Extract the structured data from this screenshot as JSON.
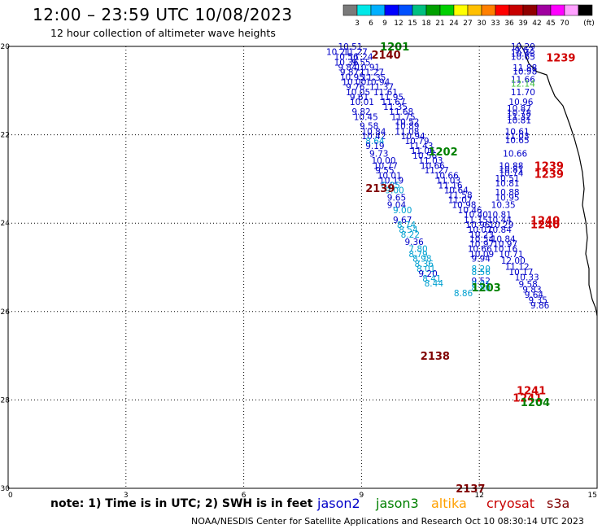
{
  "chart_data": {
    "type": "scatter",
    "title": "12:00 – 23:59 UTC 10/08/2023",
    "subtitle": "12 hour collection of altimeter wave heights",
    "x_ticks": [
      "0",
      "3",
      "6",
      "9",
      "12",
      "15"
    ],
    "y_ticks": [
      "-20",
      "-22",
      "-24",
      "-26",
      "-28",
      "-30"
    ],
    "xlim": [
      0,
      15
    ],
    "ylim": [
      -30,
      -20
    ],
    "grid": true,
    "colorbar": {
      "units": "(ft)",
      "labels": [
        "3",
        "6",
        "9",
        "12",
        "15",
        "18",
        "21",
        "24",
        "27",
        "30",
        "33",
        "36",
        "39",
        "42",
        "45",
        "70"
      ],
      "colors": [
        "#7a7a7a",
        "#00e8e8",
        "#00b0ff",
        "#0000ff",
        "#0050ff",
        "#00c080",
        "#00a000",
        "#00d000",
        "#ffff00",
        "#ffc000",
        "#ff8000",
        "#ff0000",
        "#c80000",
        "#900000",
        "#a000a0",
        "#ff00ff",
        "#ffa0ff",
        "#000000"
      ]
    },
    "legend": [
      {
        "name": "jason2",
        "color": "#0000c8"
      },
      {
        "name": "jason3",
        "color": "#008000"
      },
      {
        "name": "altika",
        "color": "#ffa000"
      },
      {
        "name": "cryosat",
        "color": "#c80000"
      },
      {
        "name": "s3a",
        "color": "#800000"
      }
    ],
    "pass_labels": [
      {
        "text": "1201",
        "x": 9.47,
        "y": -20.0,
        "color": "#008000"
      },
      {
        "text": "1239",
        "x": 13.7,
        "y": -20.25,
        "color": "#d00000"
      },
      {
        "text": "2140",
        "x": 9.25,
        "y": -20.18,
        "color": "#800000"
      },
      {
        "text": "1202",
        "x": 10.7,
        "y": -22.38,
        "color": "#008000"
      },
      {
        "text": "1239",
        "x": 13.4,
        "y": -22.7,
        "color": "#d00000"
      },
      {
        "text": "1239",
        "x": 13.4,
        "y": -22.88,
        "color": "#d00000"
      },
      {
        "text": "2139",
        "x": 9.1,
        "y": -23.2,
        "color": "#800000"
      },
      {
        "text": "1240",
        "x": 13.3,
        "y": -23.93,
        "color": "#d00000"
      },
      {
        "text": "1240",
        "x": 13.3,
        "y": -24.02,
        "color": "#d00000"
      },
      {
        "text": "1203",
        "x": 11.8,
        "y": -25.45,
        "color": "#008000"
      },
      {
        "text": "2138",
        "x": 10.5,
        "y": -27.0,
        "color": "#800000"
      },
      {
        "text": "1241",
        "x": 12.95,
        "y": -27.78,
        "color": "#d00000"
      },
      {
        "text": "1241",
        "x": 12.85,
        "y": -27.95,
        "color": "#d00000"
      },
      {
        "text": "1204",
        "x": 13.05,
        "y": -28.05,
        "color": "#008000"
      },
      {
        "text": "2137",
        "x": 11.4,
        "y": -30.0,
        "color": "#800000"
      }
    ],
    "points": [
      {
        "x": 8.4,
        "y": -20.0,
        "v": "10.51",
        "c": "#0000c8"
      },
      {
        "x": 8.1,
        "y": -20.12,
        "v": "10.21",
        "c": "#0000c8"
      },
      {
        "x": 8.53,
        "y": -20.12,
        "v": "11.27",
        "c": "#0000c8"
      },
      {
        "x": 8.3,
        "y": -20.23,
        "v": "10.56",
        "c": "#0000c8"
      },
      {
        "x": 8.67,
        "y": -20.23,
        "v": "11.24",
        "c": "#0000c8"
      },
      {
        "x": 8.3,
        "y": -20.36,
        "v": "10.36",
        "c": "#0000c8"
      },
      {
        "x": 8.75,
        "y": -20.36,
        "v": "9.55",
        "c": "#0000c8"
      },
      {
        "x": 8.4,
        "y": -20.47,
        "v": "9.84",
        "c": "#0000c8"
      },
      {
        "x": 8.85,
        "y": -20.47,
        "v": "10.91",
        "c": "#0000c8"
      },
      {
        "x": 8.45,
        "y": -20.58,
        "v": "9.87",
        "c": "#0000c8"
      },
      {
        "x": 8.95,
        "y": -20.58,
        "v": "11.27",
        "c": "#0000c8"
      },
      {
        "x": 8.45,
        "y": -20.69,
        "v": "10.95",
        "c": "#0000c8"
      },
      {
        "x": 9.0,
        "y": -20.7,
        "v": "11.35",
        "c": "#0000c8"
      },
      {
        "x": 8.5,
        "y": -20.8,
        "v": "10.00",
        "c": "#0000c8"
      },
      {
        "x": 9.1,
        "y": -20.8,
        "v": "10.94",
        "c": "#0000c8"
      },
      {
        "x": 8.6,
        "y": -20.91,
        "v": "9.76",
        "c": "#0000c8"
      },
      {
        "x": 9.2,
        "y": -20.91,
        "v": "11.37",
        "c": "#0000c8"
      },
      {
        "x": 8.6,
        "y": -21.03,
        "v": "10.05",
        "c": "#0000c8"
      },
      {
        "x": 9.3,
        "y": -21.03,
        "v": "11.61",
        "c": "#0000c8"
      },
      {
        "x": 8.7,
        "y": -21.14,
        "v": "9.61",
        "c": "#0000c8"
      },
      {
        "x": 9.45,
        "y": -21.14,
        "v": "11.95",
        "c": "#0000c8"
      },
      {
        "x": 8.7,
        "y": -21.25,
        "v": "10.01",
        "c": "#0000c8"
      },
      {
        "x": 9.5,
        "y": -21.25,
        "v": "11.67",
        "c": "#0000c8"
      },
      {
        "x": 9.55,
        "y": -21.36,
        "v": "11.35",
        "c": "#0000c8"
      },
      {
        "x": 8.75,
        "y": -21.47,
        "v": "9.82",
        "c": "#0000c8"
      },
      {
        "x": 9.7,
        "y": -21.47,
        "v": "11.68",
        "c": "#0000c8"
      },
      {
        "x": 8.8,
        "y": -21.59,
        "v": "10.45",
        "c": "#0000c8"
      },
      {
        "x": 9.75,
        "y": -21.59,
        "v": "11.75",
        "c": "#0000c8"
      },
      {
        "x": 9.85,
        "y": -21.7,
        "v": "10.52",
        "c": "#0000c8"
      },
      {
        "x": 8.95,
        "y": -21.8,
        "v": "9.58",
        "c": "#0000c8"
      },
      {
        "x": 9.85,
        "y": -21.8,
        "v": "10.89",
        "c": "#0000c8"
      },
      {
        "x": 9.0,
        "y": -21.92,
        "v": "10.84",
        "c": "#0000c8"
      },
      {
        "x": 9.85,
        "y": -21.92,
        "v": "11.08",
        "c": "#0000c8"
      },
      {
        "x": 9.0,
        "y": -22.03,
        "v": "10.42",
        "c": "#0000c8"
      },
      {
        "x": 10.0,
        "y": -22.03,
        "v": "10.94",
        "c": "#0000c8"
      },
      {
        "x": 9.1,
        "y": -22.14,
        "v": "8.64",
        "c": "#00a0d0"
      },
      {
        "x": 10.1,
        "y": -22.14,
        "v": "10.79",
        "c": "#0000c8"
      },
      {
        "x": 9.1,
        "y": -22.25,
        "v": "9.19",
        "c": "#0000c8"
      },
      {
        "x": 10.2,
        "y": -22.25,
        "v": "11.43",
        "c": "#0000c8"
      },
      {
        "x": 10.25,
        "y": -22.36,
        "v": "11.06",
        "c": "#0000c8"
      },
      {
        "x": 9.2,
        "y": -22.42,
        "v": "9.73",
        "c": "#0000c8"
      },
      {
        "x": 10.3,
        "y": -22.47,
        "v": "10.56",
        "c": "#0000c8"
      },
      {
        "x": 9.25,
        "y": -22.58,
        "v": "10.00",
        "c": "#0000c8"
      },
      {
        "x": 10.45,
        "y": -22.58,
        "v": "11.03",
        "c": "#0000c8"
      },
      {
        "x": 9.3,
        "y": -22.7,
        "v": "10.77",
        "c": "#0000c8"
      },
      {
        "x": 10.5,
        "y": -22.7,
        "v": "10.66",
        "c": "#0000c8"
      },
      {
        "x": 9.35,
        "y": -22.8,
        "v": "9.55",
        "c": "#0000c8"
      },
      {
        "x": 10.6,
        "y": -22.8,
        "v": "11.27",
        "c": "#0000c8"
      },
      {
        "x": 9.4,
        "y": -22.92,
        "v": "10.01",
        "c": "#0000c8"
      },
      {
        "x": 10.85,
        "y": -22.92,
        "v": "10.66",
        "c": "#0000c8"
      },
      {
        "x": 10.9,
        "y": -23.03,
        "v": "11.03",
        "c": "#0000c8"
      },
      {
        "x": 9.45,
        "y": -23.03,
        "v": "10.19",
        "c": "#0000c8"
      },
      {
        "x": 10.95,
        "y": -23.14,
        "v": "11.16",
        "c": "#0000c8"
      },
      {
        "x": 9.5,
        "y": -23.14,
        "v": "8.85",
        "c": "#00a0d0"
      },
      {
        "x": 11.1,
        "y": -23.25,
        "v": "10.64",
        "c": "#0000c8"
      },
      {
        "x": 9.6,
        "y": -23.25,
        "v": "9.00",
        "c": "#00a0d0"
      },
      {
        "x": 11.2,
        "y": -23.36,
        "v": "11.58",
        "c": "#0000c8"
      },
      {
        "x": 9.65,
        "y": -23.42,
        "v": "9.65",
        "c": "#0000c8"
      },
      {
        "x": 11.2,
        "y": -23.47,
        "v": "11.07",
        "c": "#0000c8"
      },
      {
        "x": 9.65,
        "y": -23.58,
        "v": "9.04",
        "c": "#0000c8"
      },
      {
        "x": 11.3,
        "y": -23.58,
        "v": "10.98",
        "c": "#0000c8"
      },
      {
        "x": 11.45,
        "y": -23.7,
        "v": "10.46",
        "c": "#0000c8"
      },
      {
        "x": 9.8,
        "y": -23.7,
        "v": "9.00",
        "c": "#00a0d0"
      },
      {
        "x": 11.6,
        "y": -23.8,
        "v": "10.40",
        "c": "#0000c8"
      },
      {
        "x": 9.8,
        "y": -23.92,
        "v": "9.67",
        "c": "#0000c8"
      },
      {
        "x": 11.6,
        "y": -23.92,
        "v": "11.15",
        "c": "#0000c8"
      },
      {
        "x": 9.9,
        "y": -24.03,
        "v": "8.74",
        "c": "#00a0d0"
      },
      {
        "x": 11.65,
        "y": -24.03,
        "v": "10.96",
        "c": "#0000c8"
      },
      {
        "x": 9.95,
        "y": -24.14,
        "v": "8.54",
        "c": "#00a0d0"
      },
      {
        "x": 11.7,
        "y": -24.14,
        "v": "10.07",
        "c": "#0000c8"
      },
      {
        "x": 10.0,
        "y": -24.25,
        "v": "8.22",
        "c": "#00a0d0"
      },
      {
        "x": 11.75,
        "y": -24.25,
        "v": "10.23",
        "c": "#0000c8"
      },
      {
        "x": 10.1,
        "y": -24.42,
        "v": "9.36",
        "c": "#0000c8"
      },
      {
        "x": 11.75,
        "y": -24.36,
        "v": "10.54",
        "c": "#0000c8"
      },
      {
        "x": 11.75,
        "y": -24.47,
        "v": "10.97",
        "c": "#0000c8"
      },
      {
        "x": 10.2,
        "y": -24.58,
        "v": "7.80",
        "c": "#00a0d0"
      },
      {
        "x": 11.7,
        "y": -24.58,
        "v": "10.66",
        "c": "#0000c8"
      },
      {
        "x": 11.75,
        "y": -24.7,
        "v": "10.09",
        "c": "#0000c8"
      },
      {
        "x": 10.2,
        "y": -24.7,
        "v": "8.79",
        "c": "#00a0d0"
      },
      {
        "x": 11.8,
        "y": -24.8,
        "v": "9.94",
        "c": "#0000c8"
      },
      {
        "x": 10.3,
        "y": -24.8,
        "v": "8.98",
        "c": "#00a0d0"
      },
      {
        "x": 10.35,
        "y": -24.92,
        "v": "8.36",
        "c": "#00a0d0"
      },
      {
        "x": 10.4,
        "y": -25.03,
        "v": "8.01",
        "c": "#00a0d0"
      },
      {
        "x": 10.45,
        "y": -25.14,
        "v": "9.20",
        "c": "#0000c8"
      },
      {
        "x": 10.55,
        "y": -25.25,
        "v": "8.41",
        "c": "#00a0d0"
      },
      {
        "x": 10.6,
        "y": -25.36,
        "v": "8.44",
        "c": "#00a0d0"
      },
      {
        "x": 12.8,
        "y": -20.0,
        "v": "10.29",
        "c": "#0000c8"
      },
      {
        "x": 12.9,
        "y": -20.08,
        "v": "9.62",
        "c": "#0000c8"
      },
      {
        "x": 12.8,
        "y": -20.16,
        "v": "10.43",
        "c": "#0000c8"
      },
      {
        "x": 12.8,
        "y": -20.23,
        "v": "10.65",
        "c": "#0000c8"
      },
      {
        "x": 12.85,
        "y": -20.48,
        "v": "11.88",
        "c": "#0000c8"
      },
      {
        "x": 12.85,
        "y": -20.56,
        "v": "10.98",
        "c": "#0000c8"
      },
      {
        "x": 12.8,
        "y": -20.75,
        "v": "11.66",
        "c": "#0000c8"
      },
      {
        "x": 12.8,
        "y": -20.84,
        "v": "12.14",
        "c": "#40c040"
      },
      {
        "x": 12.8,
        "y": -21.03,
        "v": "11.70",
        "c": "#0000c8"
      },
      {
        "x": 12.75,
        "y": -21.25,
        "v": "10.96",
        "c": "#0000c8"
      },
      {
        "x": 12.7,
        "y": -21.4,
        "v": "10.87",
        "c": "#0000c8"
      },
      {
        "x": 12.7,
        "y": -21.5,
        "v": "10.78",
        "c": "#0000c8"
      },
      {
        "x": 12.7,
        "y": -21.58,
        "v": "11.32",
        "c": "#0000c8"
      },
      {
        "x": 12.7,
        "y": -21.67,
        "v": "10.81",
        "c": "#0000c8"
      },
      {
        "x": 12.65,
        "y": -21.92,
        "v": "10.61",
        "c": "#0000c8"
      },
      {
        "x": 12.65,
        "y": -22.03,
        "v": "11.03",
        "c": "#0000c8"
      },
      {
        "x": 12.65,
        "y": -22.12,
        "v": "10.65",
        "c": "#0000c8"
      },
      {
        "x": 12.6,
        "y": -22.42,
        "v": "10.66",
        "c": "#0000c8"
      },
      {
        "x": 12.5,
        "y": -22.7,
        "v": "10.88",
        "c": "#0000c8"
      },
      {
        "x": 12.5,
        "y": -22.78,
        "v": "10.81",
        "c": "#0000c8"
      },
      {
        "x": 12.5,
        "y": -22.86,
        "v": "10.74",
        "c": "#0000c8"
      },
      {
        "x": 12.4,
        "y": -22.98,
        "v": "10.51",
        "c": "#0000c8"
      },
      {
        "x": 12.4,
        "y": -23.09,
        "v": "10.81",
        "c": "#0000c8"
      },
      {
        "x": 12.4,
        "y": -23.3,
        "v": "10.88",
        "c": "#0000c8"
      },
      {
        "x": 12.4,
        "y": -23.42,
        "v": "10.95",
        "c": "#0000c8"
      },
      {
        "x": 12.3,
        "y": -23.58,
        "v": "10.35",
        "c": "#0000c8"
      },
      {
        "x": 12.2,
        "y": -23.8,
        "v": "10.81",
        "c": "#0000c8"
      },
      {
        "x": 12.2,
        "y": -23.92,
        "v": "10.44",
        "c": "#0000c8"
      },
      {
        "x": 12.25,
        "y": -24.03,
        "v": "10.29",
        "c": "#0000c8"
      },
      {
        "x": 12.2,
        "y": -24.14,
        "v": "10.84",
        "c": "#0000c8"
      },
      {
        "x": 12.3,
        "y": -24.36,
        "v": "10.84",
        "c": "#0000c8"
      },
      {
        "x": 12.35,
        "y": -24.47,
        "v": "10.97",
        "c": "#0000c8"
      },
      {
        "x": 12.35,
        "y": -24.58,
        "v": "10.16",
        "c": "#0000c8"
      },
      {
        "x": 12.5,
        "y": -24.7,
        "v": "10.71",
        "c": "#0000c8"
      },
      {
        "x": 12.55,
        "y": -24.84,
        "v": "12.00",
        "c": "#0000c8"
      },
      {
        "x": 12.65,
        "y": -24.98,
        "v": "11.12",
        "c": "#0000c8"
      },
      {
        "x": 12.75,
        "y": -25.1,
        "v": "10.17",
        "c": "#0000c8"
      },
      {
        "x": 12.9,
        "y": -25.22,
        "v": "10.33",
        "c": "#0000c8"
      },
      {
        "x": 13.0,
        "y": -25.38,
        "v": "9.58",
        "c": "#0000c8"
      },
      {
        "x": 13.1,
        "y": -25.5,
        "v": "9.83",
        "c": "#0000c8"
      },
      {
        "x": 13.15,
        "y": -25.62,
        "v": "9.64",
        "c": "#0000c8"
      },
      {
        "x": 13.25,
        "y": -25.74,
        "v": "9.35",
        "c": "#0000c8"
      },
      {
        "x": 13.3,
        "y": -25.86,
        "v": "9.86",
        "c": "#0000c8"
      },
      {
        "x": 11.8,
        "y": -25.03,
        "v": "8.20",
        "c": "#00a0d0"
      },
      {
        "x": 11.8,
        "y": -25.1,
        "v": "8.56",
        "c": "#00a0d0"
      },
      {
        "x": 11.8,
        "y": -25.3,
        "v": "9.52",
        "c": "#0000c8"
      },
      {
        "x": 11.8,
        "y": -25.38,
        "v": "8.01",
        "c": "#00a0d0"
      },
      {
        "x": 11.8,
        "y": -25.46,
        "v": "8.80",
        "c": "#00a0d0"
      },
      {
        "x": 11.35,
        "y": -25.58,
        "v": "8.86",
        "c": "#00a0d0"
      }
    ]
  },
  "footer": {
    "note": "note: 1) Time is in UTC; 2) SWH is in feet",
    "credit": "NOAA/NESDIS Center for Satellite Applications and Research    Oct 10 08:30:14 UTC 2023"
  }
}
